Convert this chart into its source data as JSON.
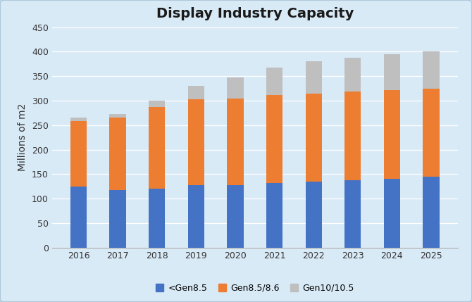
{
  "title": "Display Industry Capacity",
  "ylabel": "Millions of m2",
  "years": [
    2016,
    2017,
    2018,
    2019,
    2020,
    2021,
    2022,
    2023,
    2024,
    2025
  ],
  "gen_lt85": [
    125,
    118,
    120,
    127,
    127,
    132,
    135,
    138,
    140,
    145
  ],
  "gen_85_86": [
    133,
    147,
    167,
    176,
    178,
    180,
    180,
    180,
    182,
    180
  ],
  "gen_10_105": [
    7,
    8,
    13,
    27,
    43,
    56,
    65,
    70,
    73,
    75
  ],
  "color_lt85": "#4472C4",
  "color_85_86": "#ED7D31",
  "color_10_105": "#BFBFBF",
  "bg_color": "#D9EAF7",
  "border_color": "#B0C8DC",
  "grid_color": "#FFFFFF",
  "ylim": [
    0,
    450
  ],
  "yticks": [
    0,
    50,
    100,
    150,
    200,
    250,
    300,
    350,
    400,
    450
  ],
  "legend_labels": [
    "<Gen8.5",
    "Gen8.5/8.6",
    "Gen10/10.5"
  ],
  "title_fontsize": 14,
  "axis_fontsize": 10,
  "tick_fontsize": 9,
  "legend_fontsize": 9,
  "bar_width": 0.42
}
